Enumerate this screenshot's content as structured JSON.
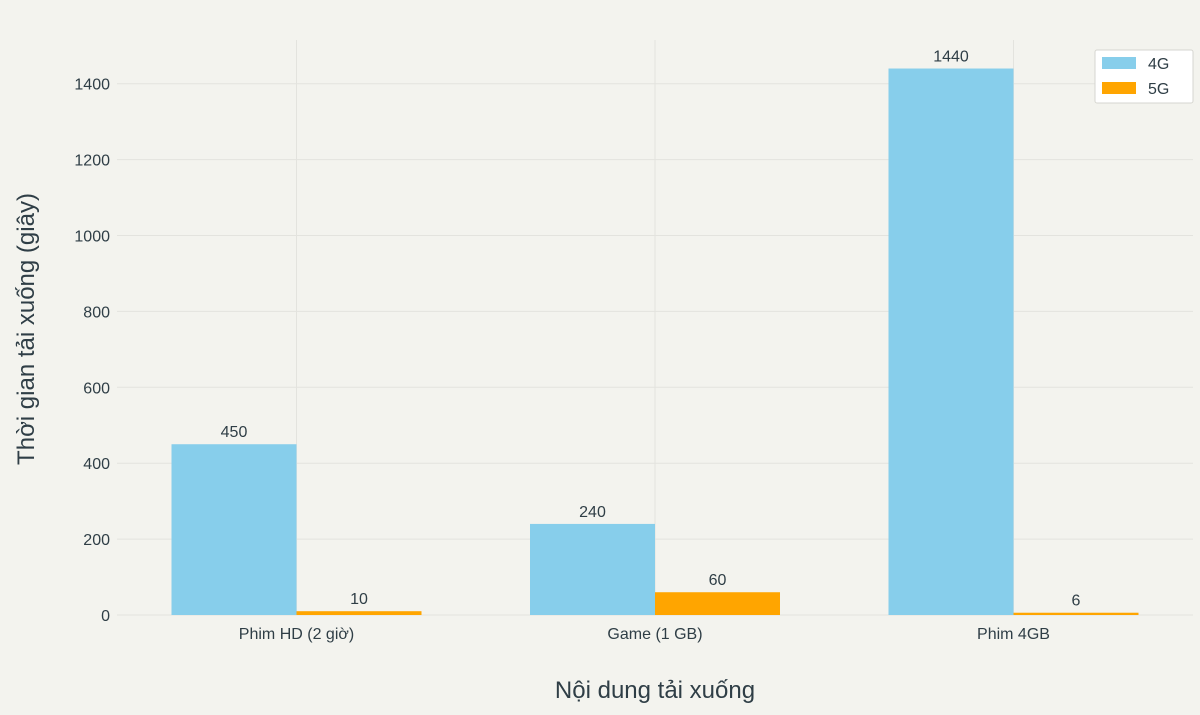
{
  "chart_data": {
    "type": "bar",
    "title": "",
    "xlabel": "Nội dung tải xuống",
    "ylabel": "Thời gian tải xuống (giây)",
    "categories": [
      "Phim HD (2 giờ)",
      "Game (1 GB)",
      "Phim 4GB"
    ],
    "series": [
      {
        "name": "4G",
        "values": [
          450,
          240,
          1440
        ],
        "color": "#87ceeb"
      },
      {
        "name": "5G",
        "values": [
          10,
          60,
          6
        ],
        "color": "#ffa500"
      }
    ],
    "ylim": [
      0,
      1500
    ],
    "yticks": [
      0,
      200,
      400,
      600,
      800,
      1000,
      1200,
      1400
    ],
    "ytick_labels": [
      "0",
      "200",
      "400",
      "600",
      "800",
      "1000",
      "1200",
      "1400"
    ],
    "grid": true,
    "legend_position": "top-right",
    "data_labels": true
  }
}
